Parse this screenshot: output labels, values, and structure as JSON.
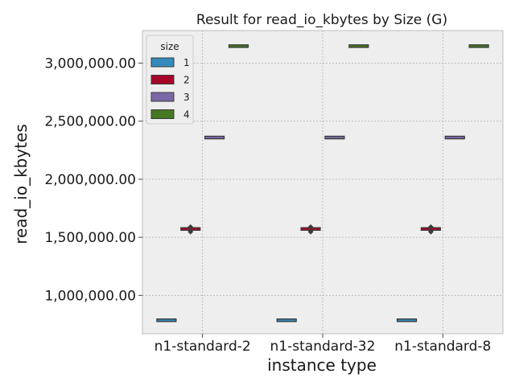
{
  "chart_data": {
    "type": "box",
    "title": "Result for read_io_kbytes by Size (G)",
    "xlabel": "instance type",
    "ylabel": "read_io_kbytes",
    "categories": [
      "n1-standard-2",
      "n1-standard-32",
      "n1-standard-8"
    ],
    "ylim": [
      670000,
      3280000
    ],
    "yticks": [
      1000000,
      1500000,
      2000000,
      2500000,
      3000000
    ],
    "ytick_labels": [
      "1,000,000.00",
      "1,500,000.00",
      "2,000,000.00",
      "2,500,000.00",
      "3,000,000.00"
    ],
    "grid": true,
    "legend": {
      "title": "size",
      "placement": "top-left"
    },
    "series": [
      {
        "name": "1",
        "color": "#348ABD",
        "values": [
          786000,
          786000,
          786000
        ],
        "outliers": [
          [],
          [],
          []
        ]
      },
      {
        "name": "2",
        "color": "#A60628",
        "values": [
          1572000,
          1572000,
          1572000
        ],
        "outliers": [
          [
            1548000,
            1588000
          ],
          [
            1548000,
            1588000
          ],
          [
            1548000,
            1588000
          ]
        ]
      },
      {
        "name": "3",
        "color": "#7A68A6",
        "values": [
          2359000,
          2359000,
          2359000
        ],
        "outliers": [
          [],
          [],
          []
        ]
      },
      {
        "name": "4",
        "color": "#467821",
        "values": [
          3146000,
          3146000,
          3146000
        ],
        "outliers": [
          [],
          [],
          []
        ]
      }
    ]
  }
}
